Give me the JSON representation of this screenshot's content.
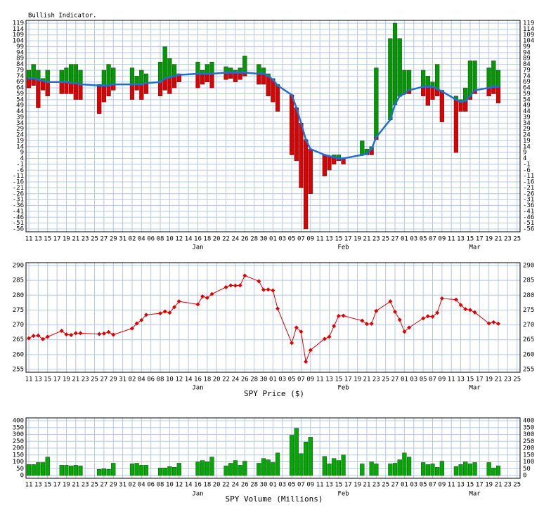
{
  "chart_data": [
    {
      "type": "bar",
      "title": "Bullish Indicator.",
      "categories": [
        "11",
        null,
        "13",
        null,
        "15",
        null,
        "17",
        null,
        "19",
        null,
        "21",
        null,
        "23",
        null,
        "25",
        null,
        "27",
        null,
        "29",
        null,
        "31",
        null,
        "02",
        null,
        "04",
        null,
        "06",
        null,
        "08",
        null,
        "10",
        null,
        "12",
        null,
        "14",
        null,
        "16",
        null,
        "18",
        null,
        "20",
        null,
        "22",
        null,
        "24",
        null,
        "26",
        null,
        "28",
        null,
        "30",
        null,
        "01",
        null,
        "03",
        null,
        "05",
        null,
        "07",
        null,
        "09",
        null,
        "11",
        null,
        "13",
        null,
        "15",
        null,
        "17",
        null,
        "19",
        null,
        "21",
        null,
        "23",
        null,
        "25",
        null,
        "27",
        null,
        "01",
        null,
        "03",
        null,
        "05",
        null,
        "07",
        null,
        "09",
        null,
        "11",
        null,
        "13",
        null,
        "15",
        null,
        "17",
        null,
        "19",
        null,
        "21",
        null,
        "23",
        null,
        "25"
      ],
      "months": [
        "Jan",
        "Feb",
        "Mar"
      ],
      "series": [
        {
          "color": "#009a00",
          "values": [
            79,
            84,
            79,
            72,
            79,
            null,
            null,
            79,
            81,
            84,
            84,
            79,
            null,
            null,
            null,
            67,
            79,
            84,
            81,
            null,
            null,
            null,
            81,
            74,
            79,
            76,
            null,
            null,
            86,
            99,
            89,
            84,
            76,
            null,
            null,
            null,
            86,
            79,
            84,
            86,
            null,
            null,
            82,
            81,
            79,
            81,
            91,
            null,
            null,
            84,
            81,
            76,
            72,
            67,
            null,
            null,
            57,
            47,
            34,
            15,
            12,
            null,
            null,
            7,
            6,
            7,
            7,
            4,
            null,
            null,
            null,
            19,
            12,
            14,
            81,
            null,
            null,
            106,
            119,
            106,
            79,
            79,
            null,
            null,
            79,
            74,
            69,
            84,
            62,
            null,
            null,
            57,
            54,
            64,
            87,
            87,
            null,
            null,
            81,
            87,
            79,
            null,
            null,
            null,
            null
          ]
        },
        {
          "color": "#dd0000",
          "values": [
            64,
            66,
            47,
            62,
            57,
            null,
            null,
            59,
            59,
            59,
            54,
            54,
            null,
            null,
            null,
            42,
            52,
            57,
            62,
            null,
            null,
            null,
            54,
            62,
            54,
            59,
            null,
            null,
            57,
            62,
            59,
            64,
            69,
            null,
            null,
            null,
            64,
            67,
            69,
            64,
            null,
            null,
            71,
            72,
            69,
            71,
            74,
            null,
            null,
            67,
            67,
            57,
            52,
            44,
            null,
            null,
            7,
            2,
            -21,
            -56,
            -26,
            null,
            null,
            -11,
            -6,
            -1,
            2,
            -1,
            null,
            null,
            null,
            7,
            7,
            7,
            20,
            null,
            null,
            37,
            50,
            57,
            59,
            59,
            null,
            null,
            57,
            49,
            54,
            57,
            35,
            null,
            null,
            9,
            44,
            44,
            54,
            59,
            null,
            null,
            57,
            59,
            51,
            null,
            null,
            null,
            null
          ]
        },
        {
          "type": "line",
          "color": "#1f6fd0",
          "values": [
            72,
            72,
            71,
            70,
            69,
            null,
            null,
            69,
            69,
            68,
            68,
            67,
            null,
            null,
            null,
            66,
            66,
            66,
            67,
            null,
            null,
            null,
            67,
            67,
            67,
            68,
            null,
            null,
            69,
            72,
            73,
            74,
            75,
            null,
            null,
            null,
            76,
            76,
            76,
            76,
            null,
            null,
            77,
            77,
            77,
            77,
            77,
            null,
            null,
            76,
            76,
            74,
            71,
            66,
            null,
            null,
            58,
            47,
            34,
            20,
            12,
            null,
            null,
            7,
            6,
            5,
            4,
            4,
            null,
            null,
            null,
            7,
            8,
            12,
            22,
            null,
            null,
            37,
            50,
            57,
            59,
            62,
            null,
            null,
            65,
            65,
            65,
            63,
            61,
            null,
            null,
            54,
            52,
            53,
            57,
            62,
            null,
            null,
            64,
            65,
            65,
            null,
            null,
            null,
            null
          ]
        }
      ],
      "ylim": [
        -56,
        119
      ],
      "yticks": [
        119,
        114,
        109,
        104,
        99,
        94,
        89,
        84,
        79,
        74,
        69,
        64,
        59,
        54,
        49,
        44,
        39,
        34,
        29,
        24,
        19,
        14,
        9,
        4,
        -1,
        -6,
        -11,
        -16,
        -21,
        -26,
        -31,
        -36,
        -41,
        -46,
        -51,
        -56
      ],
      "grid": true
    },
    {
      "type": "line",
      "xlabel": "SPY Price ($)",
      "categories": [
        "11",
        null,
        "13",
        null,
        "15",
        null,
        "17",
        null,
        "19",
        null,
        "21",
        null,
        "23",
        null,
        "25",
        null,
        "27",
        null,
        "29",
        null,
        "31",
        null,
        "02",
        null,
        "04",
        null,
        "06",
        null,
        "08",
        null,
        "10",
        null,
        "12",
        null,
        "14",
        null,
        "16",
        null,
        "18",
        null,
        "20",
        null,
        "22",
        null,
        "24",
        null,
        "26",
        null,
        "28",
        null,
        "30",
        null,
        "01",
        null,
        "03",
        null,
        "05",
        null,
        "07",
        null,
        "09",
        null,
        "11",
        null,
        "13",
        null,
        "15",
        null,
        "17",
        null,
        "19",
        null,
        "21",
        null,
        "23",
        null,
        "25",
        null,
        "27",
        null,
        "01",
        null,
        "03",
        null,
        "05",
        null,
        "07",
        null,
        "09",
        null,
        "11",
        null,
        "13",
        null,
        "15",
        null,
        "17",
        null,
        "19",
        null,
        "21",
        null,
        "23",
        null,
        "25"
      ],
      "months": [
        "Jan",
        "Feb",
        "Mar"
      ],
      "series": [
        {
          "color": "#e00000",
          "values": [
            265.5,
            266.3,
            266.4,
            265.2,
            266.0,
            null,
            null,
            268.0,
            266.8,
            266.6,
            267.2,
            267.2,
            null,
            null,
            null,
            266.9,
            267.1,
            267.6,
            266.7,
            null,
            null,
            null,
            268.8,
            270.5,
            271.6,
            273.4,
            null,
            null,
            273.9,
            274.5,
            274.1,
            276.0,
            277.9,
            null,
            null,
            null,
            276.9,
            279.6,
            279.1,
            280.4,
            null,
            null,
            282.7,
            283.3,
            283.2,
            283.3,
            286.6,
            null,
            null,
            284.7,
            281.8,
            281.9,
            281.6,
            275.5,
            null,
            null,
            263.9,
            269.1,
            267.7,
            257.6,
            261.5,
            null,
            null,
            265.3,
            266.0,
            269.6,
            273.0,
            273.1,
            null,
            null,
            null,
            271.4,
            270.3,
            270.4,
            274.7,
            null,
            null,
            277.9,
            274.4,
            271.7,
            267.7,
            269.1,
            null,
            null,
            272.2,
            272.9,
            272.8,
            274.1,
            278.9,
            null,
            null,
            278.5,
            276.7,
            275.3,
            275.0,
            274.2,
            null,
            null,
            270.5,
            270.9,
            270.4,
            null,
            null,
            null,
            null
          ]
        }
      ],
      "ylim": [
        255,
        290
      ],
      "yticks": [
        290,
        285,
        280,
        275,
        270,
        265,
        260,
        255
      ],
      "grid": true
    },
    {
      "type": "bar",
      "xlabel": "SPY Volume (Millions)",
      "categories": [
        "11",
        null,
        "13",
        null,
        "15",
        null,
        "17",
        null,
        "19",
        null,
        "21",
        null,
        "23",
        null,
        "25",
        null,
        "27",
        null,
        "29",
        null,
        "31",
        null,
        "02",
        null,
        "04",
        null,
        "06",
        null,
        "08",
        null,
        "10",
        null,
        "12",
        null,
        "14",
        null,
        "16",
        null,
        "18",
        null,
        "20",
        null,
        "22",
        null,
        "24",
        null,
        "26",
        null,
        "28",
        null,
        "30",
        null,
        "01",
        null,
        "03",
        null,
        "05",
        null,
        "07",
        null,
        "09",
        null,
        "11",
        null,
        "13",
        null,
        "15",
        null,
        "17",
        null,
        "19",
        null,
        "21",
        null,
        "23",
        null,
        "25",
        null,
        "27",
        null,
        "01",
        null,
        "03",
        null,
        "05",
        null,
        "07",
        null,
        "09",
        null,
        "11",
        null,
        "13",
        null,
        "15",
        null,
        "17",
        null,
        "19",
        null,
        "21",
        null,
        "23",
        null,
        "25"
      ],
      "months": [
        "Jan",
        "Feb",
        "Mar"
      ],
      "series": [
        {
          "color": "#00aa00",
          "values": [
            80,
            80,
            95,
            95,
            135,
            null,
            null,
            75,
            75,
            70,
            75,
            70,
            null,
            null,
            null,
            45,
            50,
            45,
            90,
            null,
            null,
            null,
            85,
            90,
            75,
            75,
            null,
            null,
            55,
            55,
            65,
            60,
            90,
            null,
            null,
            null,
            100,
            110,
            100,
            135,
            null,
            null,
            70,
            90,
            110,
            75,
            105,
            null,
            null,
            90,
            125,
            115,
            95,
            165,
            null,
            null,
            295,
            345,
            160,
            245,
            280,
            null,
            null,
            140,
            85,
            125,
            110,
            150,
            null,
            null,
            null,
            85,
            null,
            100,
            85,
            null,
            null,
            85,
            90,
            115,
            165,
            135,
            null,
            null,
            95,
            80,
            85,
            60,
            105,
            null,
            null,
            65,
            80,
            100,
            85,
            95,
            null,
            null,
            95,
            55,
            70,
            null,
            null,
            null,
            null
          ]
        }
      ],
      "ylim": [
        0,
        400
      ],
      "yticks": [
        400,
        350,
        300,
        250,
        200,
        150,
        100,
        50,
        0
      ],
      "grid": true
    }
  ]
}
